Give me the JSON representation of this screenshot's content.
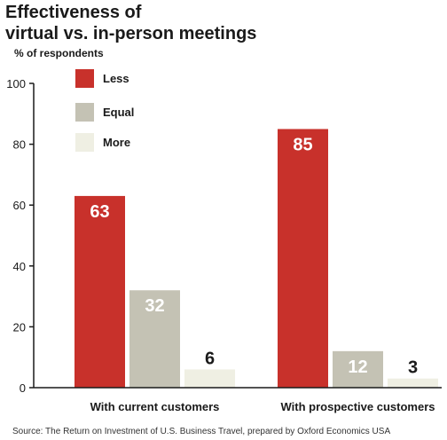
{
  "colors": {
    "less": "#c8312b",
    "equal": "#c4c2b4",
    "more": "#efefe3",
    "label_on_dark": "#ffffff",
    "label_on_light": "#1a1a1a"
  },
  "chart_data": {
    "type": "bar",
    "title": "Effectiveness of virtual vs. in-person meetings",
    "title_lines": [
      "Effectiveness of",
      "virtual vs. in-person meetings"
    ],
    "ylabel": "% of respondents",
    "xlabel": "",
    "ylim": [
      0,
      100
    ],
    "yticks": [
      0,
      20,
      40,
      60,
      80,
      100
    ],
    "grid": false,
    "legend": "top-left",
    "categories": [
      "With current customers",
      "With prospective customers"
    ],
    "series": [
      {
        "name": "Less",
        "values": [
          63,
          85
        ],
        "color_key": "less"
      },
      {
        "name": "Equal",
        "values": [
          32,
          12
        ],
        "color_key": "equal"
      },
      {
        "name": "More",
        "values": [
          6,
          3
        ],
        "color_key": "more"
      }
    ],
    "source": "Source: The Return on Investment of U.S. Business Travel, prepared by Oxford Economics USA"
  }
}
